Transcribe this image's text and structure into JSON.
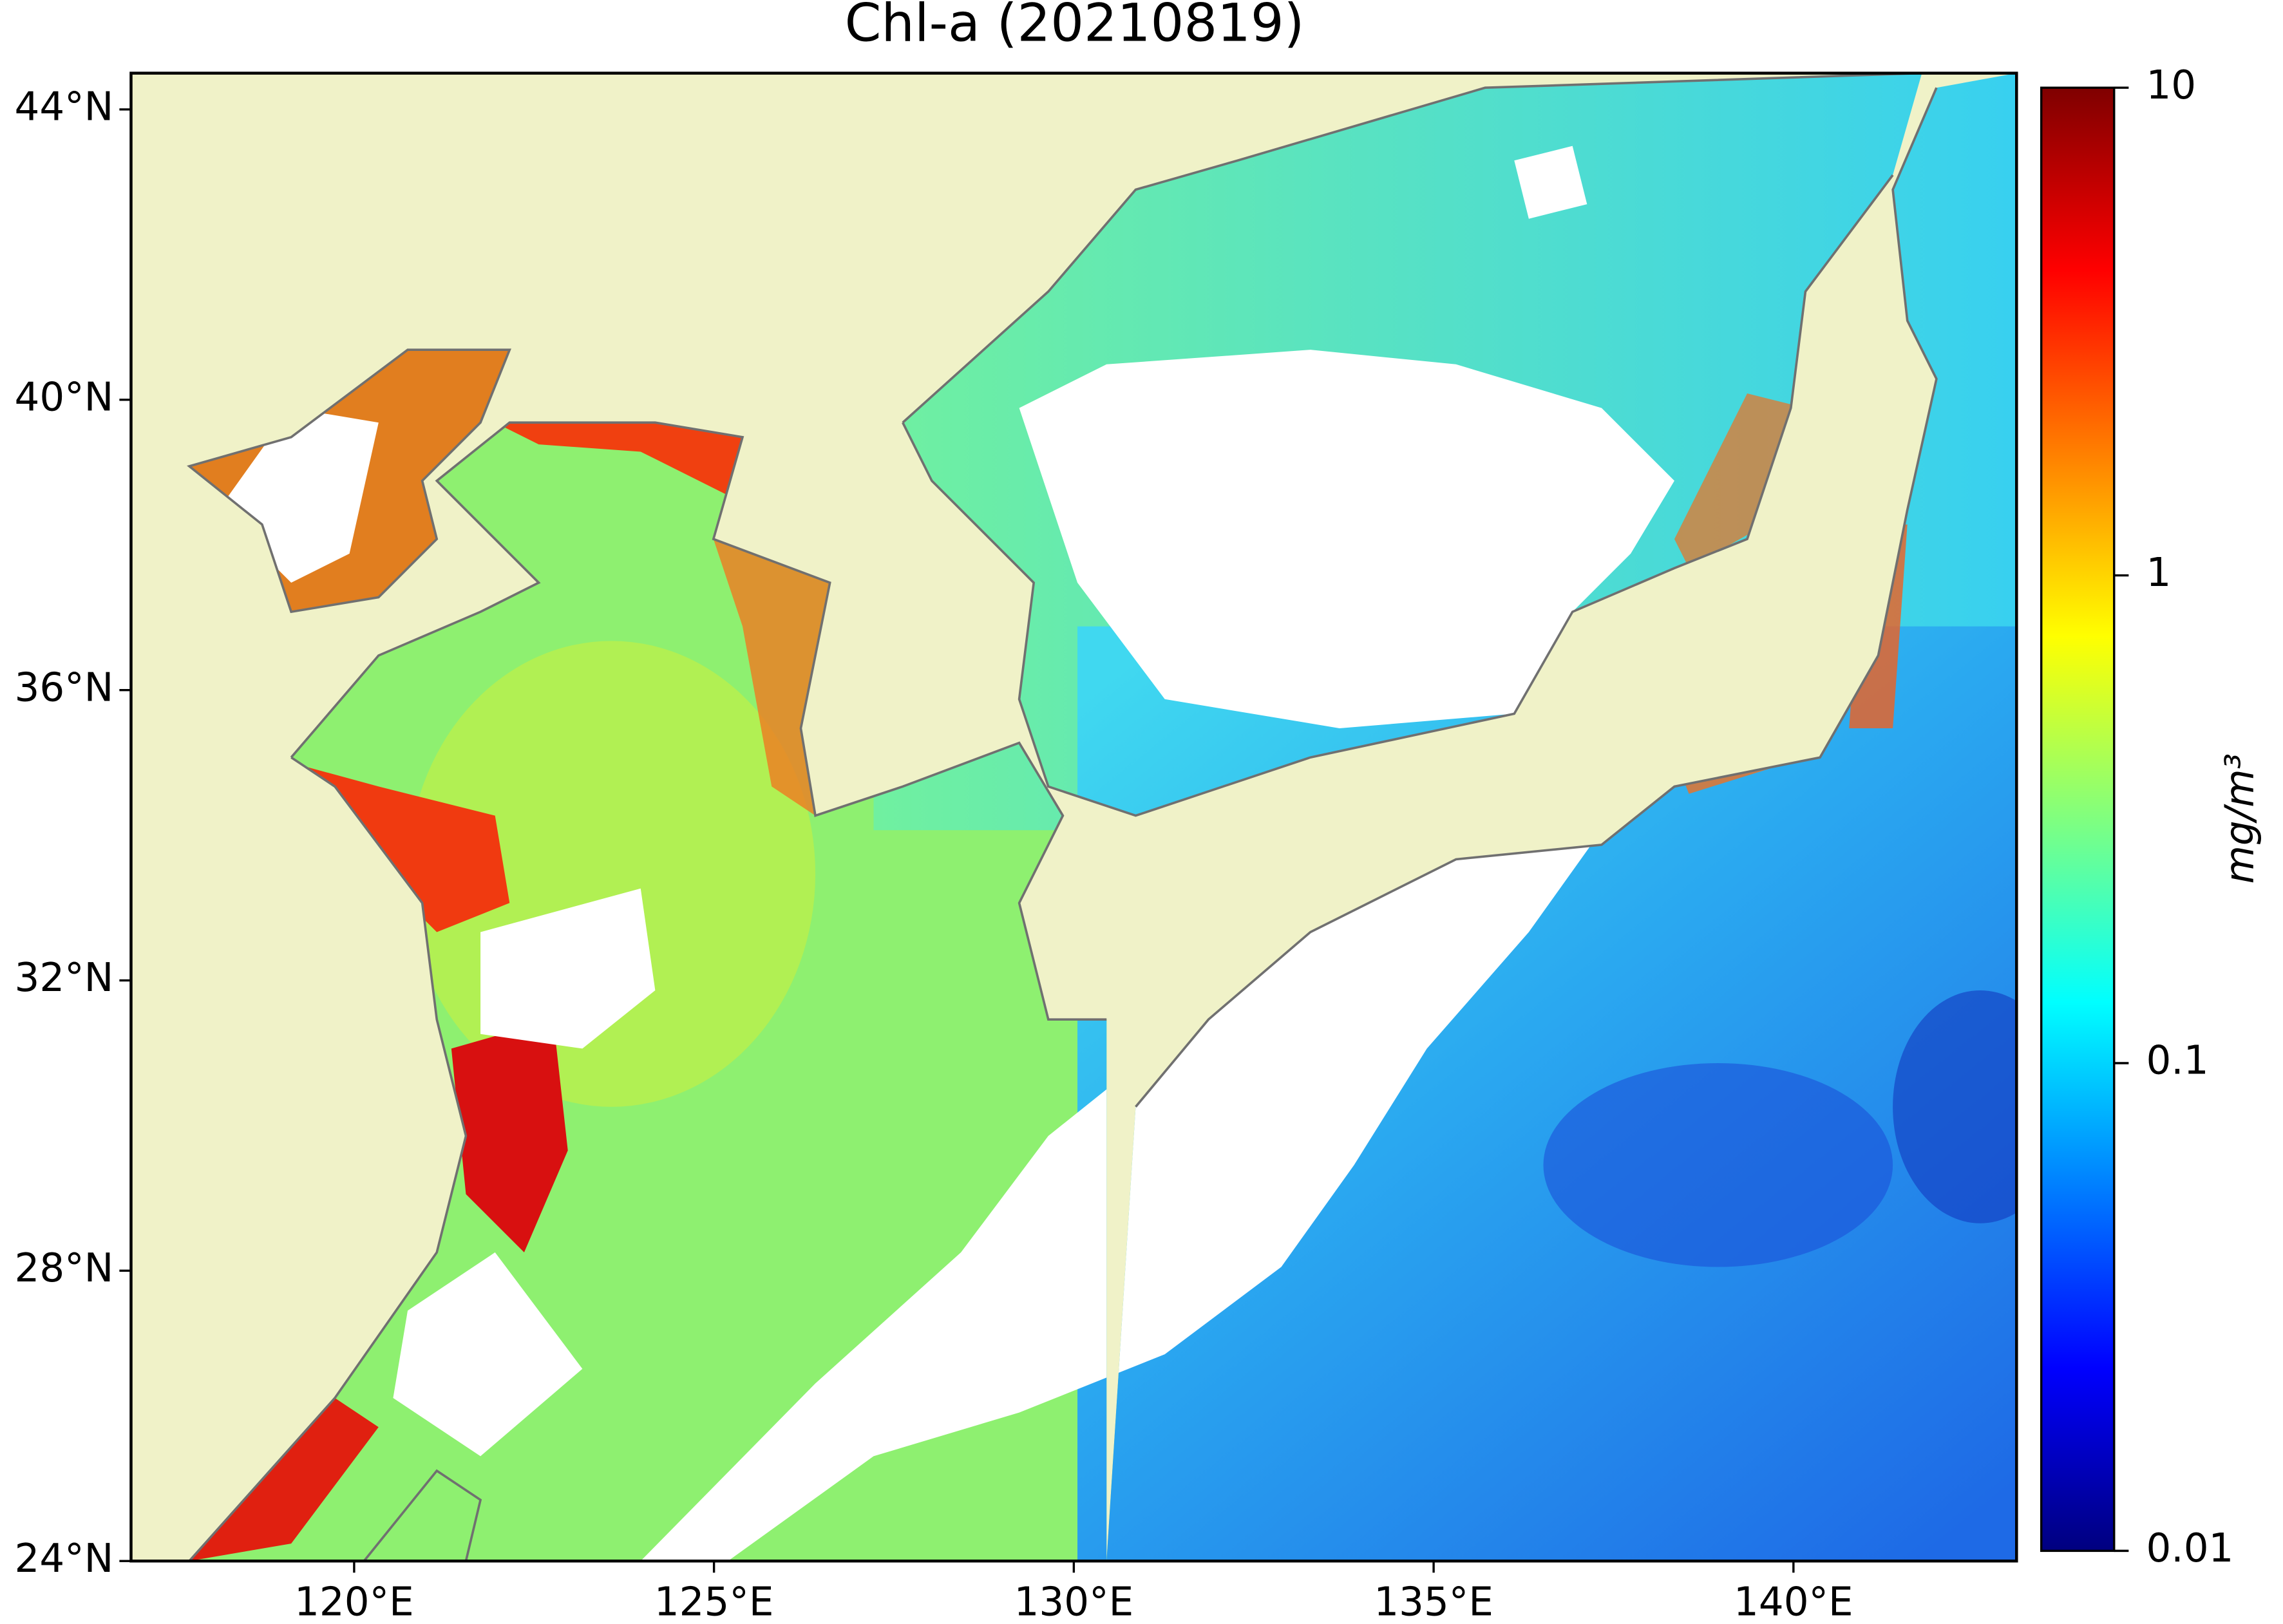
{
  "chart_data": {
    "type": "map",
    "title": "Chl-a (20210819)",
    "xlim": [
      116.9,
      143.1
    ],
    "ylim": [
      24,
      44.5
    ],
    "xticks": [
      {
        "value": 120,
        "label": "120°E"
      },
      {
        "value": 125,
        "label": "125°E"
      },
      {
        "value": 130,
        "label": "130°E"
      },
      {
        "value": 135,
        "label": "135°E"
      },
      {
        "value": 140,
        "label": "140°E"
      }
    ],
    "yticks": [
      {
        "value": 24,
        "label": "24°N"
      },
      {
        "value": 28,
        "label": "28°N"
      },
      {
        "value": 32,
        "label": "32°N"
      },
      {
        "value": 36,
        "label": "36°N"
      },
      {
        "value": 40,
        "label": "40°N"
      },
      {
        "value": 44,
        "label": "44°N"
      }
    ],
    "colorbar": {
      "label": "mg/m³",
      "colormap": "jet",
      "log": true,
      "lim": [
        0.01,
        10
      ],
      "ticks": [
        0.01,
        0.1,
        1,
        10
      ]
    }
  }
}
